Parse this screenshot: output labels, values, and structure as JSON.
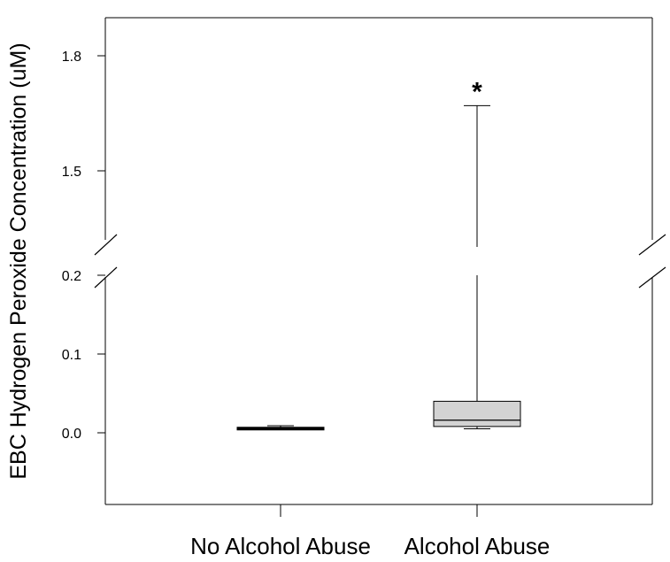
{
  "chart_data": {
    "type": "box",
    "ylabel": "EBC Hydrogen Peroxide Concentration (uM)",
    "xlabel": "",
    "title": "",
    "categories": [
      "No Alcohol Abuse",
      "Alcohol Abuse"
    ],
    "y_axis_break": {
      "lower_range": [
        -0.085,
        0.2
      ],
      "upper_range": [
        1.35,
        1.85
      ]
    },
    "y_ticks": [
      0.0,
      0.1,
      0.2,
      1.5,
      1.8
    ],
    "y_tick_labels": [
      "0.0",
      "0.1",
      "0.2",
      "1.5",
      "1.8"
    ],
    "boxes": [
      {
        "name": "No Alcohol Abuse",
        "whisker_low": 0.004,
        "q1": 0.005,
        "median": 0.006,
        "q3": 0.007,
        "whisker_high": 0.009,
        "fill": "#000000"
      },
      {
        "name": "Alcohol Abuse",
        "whisker_low": 0.005,
        "q1": 0.008,
        "median": 0.016,
        "q3": 0.04,
        "whisker_high": 1.67,
        "fill": "#d3d3d3"
      }
    ],
    "annotations": [
      {
        "category": "Alcohol Abuse",
        "text": "*"
      }
    ],
    "grid": false,
    "legend": "none"
  },
  "colors": {
    "box_fill": "#d3d3d3",
    "line": "#000000",
    "background": "#ffffff"
  }
}
